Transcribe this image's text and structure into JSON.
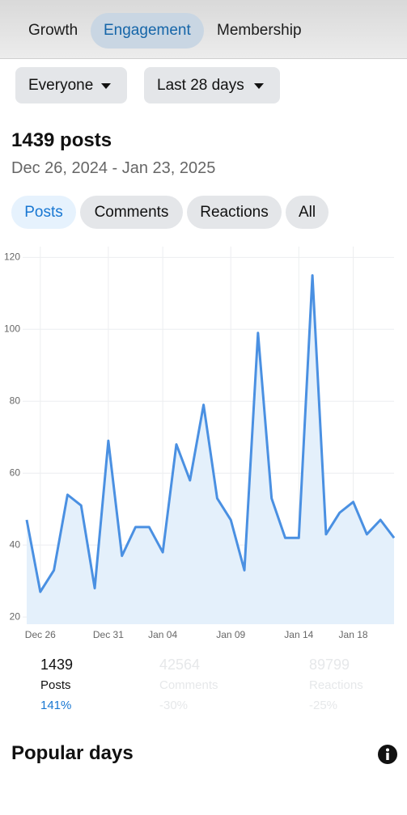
{
  "tabs": [
    "Growth",
    "Engagement",
    "Membership"
  ],
  "filters": [
    "Everyone",
    "Last 28 days"
  ],
  "summary": {
    "title": "1439 posts",
    "date_range": "Dec 26, 2024 - Jan 23, 2025"
  },
  "chips": [
    "Posts",
    "Comments",
    "Reactions",
    "All"
  ],
  "chart_data": {
    "type": "line",
    "color": "#4a90e2",
    "fill": "#e4f0fb",
    "grid": true,
    "categories": [
      null,
      "Dec 26",
      null,
      null,
      null,
      null,
      "Dec 31",
      null,
      null,
      null,
      "Jan 04",
      null,
      null,
      null,
      null,
      "Jan 09",
      null,
      null,
      null,
      null,
      "Jan 14",
      null,
      null,
      null,
      "Jan 18",
      null,
      null,
      null
    ],
    "values": [
      47,
      27,
      33,
      54,
      51,
      28,
      69,
      37,
      45,
      45,
      38,
      68,
      58,
      79,
      53,
      47,
      33,
      99,
      53,
      42,
      42,
      115,
      43,
      49,
      52,
      43,
      47,
      42
    ],
    "ylim": [
      18,
      123
    ],
    "yticks": [
      20,
      40,
      60,
      80,
      100,
      120
    ]
  },
  "stats": [
    {
      "value": "1439",
      "label": "Posts",
      "change": "141%"
    },
    {
      "value": "42564",
      "label": "Comments",
      "change": "-30%"
    },
    {
      "value": "89799",
      "label": "Reactions",
      "change": "-25%"
    }
  ],
  "section": {
    "title": "Popular days"
  }
}
